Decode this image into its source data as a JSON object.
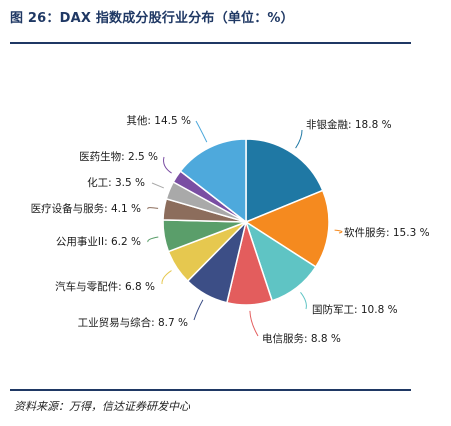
{
  "header": {
    "title": "图 26：DAX 指数成分股行业分布（单位：%）"
  },
  "footer": {
    "source": "资料来源：万得，信达证券研发中心"
  },
  "chart_data": {
    "type": "pie",
    "unit": "%",
    "slices": [
      {
        "label": "非银金融",
        "value": 18.8,
        "color": "#1f78a4",
        "display": "18.8 %"
      },
      {
        "label": "软件服务",
        "value": 15.3,
        "color": "#f58a1f",
        "display": "15.3 %"
      },
      {
        "label": "国防军工",
        "value": 10.8,
        "color": "#5fc4c4",
        "display": "10.8 %"
      },
      {
        "label": "电信服务",
        "value": 8.8,
        "color": "#e35d5d",
        "display": "8.8 %"
      },
      {
        "label": "工业贸易与综合",
        "value": 8.7,
        "color": "#3c4e86",
        "display": "8.7 %"
      },
      {
        "label": "汽车与零配件",
        "value": 6.8,
        "color": "#e6c84f",
        "display": "6.8 %"
      },
      {
        "label": "公用事业II",
        "value": 6.2,
        "color": "#5a9e6a",
        "display": "6.2 %"
      },
      {
        "label": "医疗设备与服务",
        "value": 4.1,
        "color": "#8c6d5c",
        "display": "4.1 %"
      },
      {
        "label": "化工",
        "value": 3.5,
        "color": "#a9a9a9",
        "display": "3.5 %"
      },
      {
        "label": "医药生物",
        "value": 2.5,
        "color": "#7a4ea3",
        "display": "2.5 %"
      },
      {
        "label": "其他",
        "value": 14.5,
        "color": "#4ea9dc",
        "display": "14.5 %"
      }
    ]
  }
}
